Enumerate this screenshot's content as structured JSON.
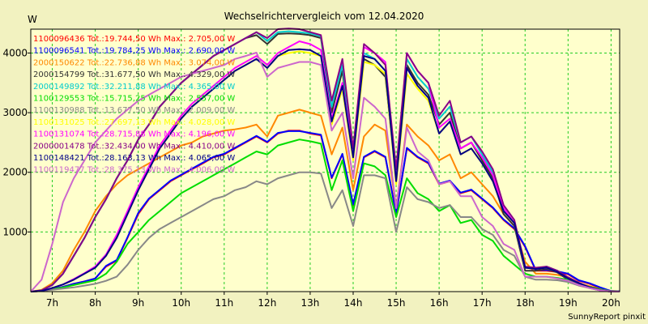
{
  "chart_data": {
    "type": "line",
    "title": "Wechselrichtervergleich vom 12.04.2020",
    "ylabel": "W",
    "footer": "SunnyReport pinxit",
    "background": "#f2f2c0",
    "plot_background": "#ffffcc",
    "grid": true,
    "grid_color": "#22cc22",
    "legend_position": "top-left",
    "xlim": [
      6.5,
      20.2
    ],
    "ylim": [
      0,
      4400
    ],
    "x_ticks": [
      {
        "v": 7,
        "label": "7h"
      },
      {
        "v": 8,
        "label": "8h"
      },
      {
        "v": 9,
        "label": "9h"
      },
      {
        "v": 10,
        "label": "10h"
      },
      {
        "v": 11,
        "label": "11h"
      },
      {
        "v": 12,
        "label": "12h"
      },
      {
        "v": 13,
        "label": "13h"
      },
      {
        "v": 14,
        "label": "14h"
      },
      {
        "v": 15,
        "label": "15h"
      },
      {
        "v": 16,
        "label": "16h"
      },
      {
        "v": 17,
        "label": "17h"
      },
      {
        "v": 18,
        "label": "18h"
      },
      {
        "v": 19,
        "label": "19h"
      },
      {
        "v": 20,
        "label": "20h"
      }
    ],
    "y_ticks": [
      {
        "v": 1000,
        "label": "1000"
      },
      {
        "v": 2000,
        "label": "2000"
      },
      {
        "v": 3000,
        "label": "3000"
      },
      {
        "v": 4000,
        "label": "4000"
      }
    ],
    "x": [
      6.5,
      6.75,
      7,
      7.25,
      7.5,
      7.75,
      8,
      8.25,
      8.5,
      8.75,
      9,
      9.25,
      9.5,
      9.75,
      10,
      10.25,
      10.5,
      10.75,
      11,
      11.25,
      11.5,
      11.75,
      12,
      12.25,
      12.5,
      12.75,
      13,
      13.25,
      13.5,
      13.75,
      14,
      14.25,
      14.5,
      14.75,
      15,
      15.25,
      15.5,
      15.75,
      16,
      16.25,
      16.5,
      16.75,
      17,
      17.25,
      17.5,
      17.75,
      18,
      18.25,
      18.5,
      18.75,
      19,
      19.25,
      19.5,
      19.75,
      20,
      20.2
    ],
    "series": [
      {
        "name": "1100096436 Tot.:19.744,50 Wh Max.: 2.705,00 W",
        "color": "#ff0000",
        "values": [
          0,
          10,
          40,
          80,
          130,
          170,
          220,
          420,
          520,
          900,
          1300,
          1550,
          1700,
          1850,
          1950,
          2050,
          2150,
          2250,
          2300,
          2400,
          2500,
          2600,
          2500,
          2650,
          2700,
          2700,
          2650,
          2620,
          1900,
          2300,
          1450,
          2250,
          2350,
          2250,
          1300,
          2400,
          2250,
          2150,
          1800,
          1850,
          1650,
          1700,
          1550,
          1400,
          1200,
          1050,
          750,
          350,
          350,
          330,
          290,
          180,
          130,
          60,
          10,
          5
        ]
      },
      {
        "name": "1100096541 Tot.:19.784,25 Wh Max.: 2.690,00 W",
        "color": "#0000ff",
        "values": [
          0,
          10,
          40,
          80,
          130,
          170,
          220,
          430,
          530,
          910,
          1320,
          1560,
          1710,
          1860,
          1960,
          2060,
          2160,
          2260,
          2310,
          2410,
          2510,
          2610,
          2510,
          2660,
          2690,
          2690,
          2660,
          2630,
          1910,
          2310,
          1460,
          2260,
          2360,
          2260,
          1310,
          2410,
          2260,
          2160,
          1810,
          1860,
          1660,
          1710,
          1560,
          1410,
          1210,
          1060,
          760,
          360,
          360,
          340,
          300,
          190,
          140,
          70,
          10,
          5
        ]
      },
      {
        "name": "2000150622 Tot.:22.736,88 Wh Max.: 3.074,00 W",
        "color": "#ff8800",
        "values": [
          0,
          30,
          140,
          350,
          700,
          1000,
          1350,
          1600,
          1800,
          1950,
          2050,
          2150,
          2250,
          2350,
          2450,
          2500,
          2600,
          2650,
          2700,
          2720,
          2750,
          2800,
          2600,
          2950,
          3000,
          3050,
          3000,
          2950,
          2300,
          2750,
          1700,
          2600,
          2800,
          2700,
          1400,
          2800,
          2600,
          2450,
          2200,
          2300,
          1900,
          2000,
          1800,
          1600,
          1300,
          1100,
          500,
          300,
          300,
          280,
          240,
          140,
          90,
          40,
          5,
          0
        ]
      },
      {
        "name": "2000154799 Tot.:31.677,50 Wh Max.: 4.329,00 W",
        "color": "#333333",
        "values": [
          0,
          20,
          110,
          300,
          600,
          900,
          1250,
          1550,
          1900,
          2200,
          2550,
          2800,
          3100,
          3300,
          3500,
          3650,
          3800,
          3950,
          4050,
          4150,
          4250,
          4300,
          4150,
          4320,
          4329,
          4320,
          4300,
          4250,
          3000,
          3700,
          2300,
          3900,
          3800,
          3600,
          1900,
          3800,
          3500,
          3300,
          2800,
          3000,
          2400,
          2500,
          2200,
          1900,
          1300,
          1100,
          350,
          350,
          380,
          320,
          200,
          120,
          60,
          20,
          0,
          0
        ]
      },
      {
        "name": "2000149892 Tot.:32.211,88 Wh Max.: 4.365,00 W",
        "color": "#00cccc",
        "values": [
          0,
          20,
          110,
          300,
          600,
          900,
          1250,
          1550,
          1900,
          2200,
          2550,
          2800,
          3100,
          3300,
          3500,
          3650,
          3800,
          3950,
          4050,
          4150,
          4250,
          4350,
          4200,
          4350,
          4365,
          4350,
          4330,
          4280,
          3100,
          3800,
          2350,
          4000,
          3900,
          3700,
          2000,
          3900,
          3600,
          3400,
          2900,
          3100,
          2500,
          2600,
          2300,
          2000,
          1400,
          1150,
          400,
          390,
          420,
          350,
          230,
          140,
          70,
          25,
          0,
          0
        ]
      },
      {
        "name": "1100129553 Tot.:15.715,25 Wh Max.: 2.557,00 W",
        "color": "#00dd00",
        "values": [
          0,
          10,
          40,
          70,
          110,
          150,
          190,
          300,
          500,
          800,
          1000,
          1200,
          1350,
          1500,
          1650,
          1750,
          1850,
          1950,
          2050,
          2150,
          2250,
          2350,
          2300,
          2450,
          2500,
          2550,
          2520,
          2480,
          1700,
          2200,
          1350,
          2150,
          2100,
          1950,
          1250,
          1900,
          1650,
          1550,
          1350,
          1450,
          1150,
          1200,
          950,
          850,
          600,
          450,
          300,
          250,
          250,
          230,
          200,
          120,
          80,
          40,
          5,
          0
        ]
      },
      {
        "name": "1100130988 Tot.:13.677,50 Wh Max.: 2.009,00 W",
        "color": "#888888",
        "values": [
          0,
          10,
          30,
          50,
          70,
          100,
          130,
          180,
          250,
          450,
          700,
          900,
          1050,
          1150,
          1250,
          1350,
          1450,
          1550,
          1600,
          1700,
          1750,
          1850,
          1800,
          1900,
          1950,
          2000,
          2000,
          1980,
          1400,
          1700,
          1100,
          1950,
          1950,
          1900,
          1000,
          1750,
          1550,
          1500,
          1400,
          1450,
          1250,
          1250,
          1050,
          950,
          700,
          600,
          250,
          200,
          200,
          190,
          160,
          100,
          60,
          30,
          5,
          0
        ]
      },
      {
        "name": "1100131025 Tot.:27.697,13 Wh Max.: 4.028,00 W",
        "color": "#ffff00",
        "values": [
          0,
          10,
          60,
          120,
          200,
          300,
          400,
          600,
          900,
          1300,
          1700,
          2050,
          2400,
          2650,
          2900,
          3100,
          3250,
          3400,
          3550,
          3700,
          3800,
          3900,
          3750,
          3950,
          4000,
          4028,
          4000,
          3950,
          2800,
          3400,
          2200,
          3850,
          3800,
          3650,
          1800,
          3650,
          3400,
          3200,
          2650,
          2850,
          2300,
          2400,
          2150,
          1850,
          1350,
          1150,
          400,
          380,
          400,
          330,
          220,
          140,
          70,
          25,
          0,
          0
        ]
      },
      {
        "name": "1100131074 Tot.:28.715,88 Wh Max.: 4.196,00 W",
        "color": "#ff00ff",
        "values": [
          0,
          10,
          60,
          120,
          210,
          310,
          420,
          620,
          950,
          1350,
          1750,
          2100,
          2450,
          2700,
          2950,
          3150,
          3300,
          3450,
          3600,
          3750,
          3850,
          3950,
          3800,
          4000,
          4100,
          4196,
          4150,
          4050,
          2900,
          3500,
          2300,
          4100,
          4000,
          3850,
          1900,
          4000,
          3700,
          3500,
          2750,
          2900,
          2400,
          2500,
          2250,
          1950,
          1400,
          1150,
          400,
          380,
          400,
          330,
          220,
          140,
          70,
          25,
          0,
          0
        ]
      },
      {
        "name": "2000001478 Tot.:32.434,00 Wh Max.: 4.410,00 W",
        "color": "#880088",
        "values": [
          0,
          20,
          110,
          300,
          600,
          900,
          1250,
          1550,
          1900,
          2200,
          2550,
          2800,
          3100,
          3300,
          3500,
          3650,
          3800,
          3950,
          4050,
          4150,
          4250,
          4350,
          4250,
          4400,
          4410,
          4400,
          4350,
          4300,
          3200,
          3900,
          2400,
          4150,
          4000,
          3800,
          2050,
          4000,
          3700,
          3500,
          2950,
          3200,
          2500,
          2600,
          2350,
          2050,
          1450,
          1200,
          420,
          400,
          420,
          350,
          240,
          150,
          75,
          25,
          0,
          0
        ]
      },
      {
        "name": "1100148421 Tot.:28.163,13 Wh Max.: 4.065,00 W",
        "color": "#000088",
        "values": [
          0,
          10,
          60,
          120,
          200,
          300,
          400,
          600,
          900,
          1300,
          1700,
          2050,
          2400,
          2650,
          2900,
          3100,
          3250,
          3400,
          3550,
          3700,
          3800,
          3900,
          3750,
          3950,
          4050,
          4065,
          4050,
          3950,
          2850,
          3450,
          2250,
          3950,
          3900,
          3700,
          1850,
          3750,
          3450,
          3250,
          2650,
          2850,
          2300,
          2400,
          2150,
          1850,
          1350,
          1150,
          400,
          380,
          400,
          330,
          220,
          140,
          70,
          25,
          0,
          0
        ]
      },
      {
        "name": "1100119477 Tot.:28.375,13 Wh Max.: 4.006,00 W",
        "color": "#cc66cc",
        "values": [
          0,
          200,
          800,
          1500,
          1900,
          2200,
          2500,
          2700,
          2900,
          3050,
          3200,
          3300,
          3400,
          3500,
          3600,
          3650,
          3700,
          3750,
          3800,
          3900,
          3950,
          4006,
          3600,
          3750,
          3800,
          3850,
          3850,
          3800,
          2700,
          3000,
          1900,
          3250,
          3100,
          2900,
          1400,
          2750,
          2350,
          2200,
          1800,
          1850,
          1600,
          1600,
          1250,
          1100,
          800,
          700,
          250,
          250,
          250,
          220,
          180,
          110,
          60,
          20,
          0,
          0
        ]
      }
    ]
  }
}
